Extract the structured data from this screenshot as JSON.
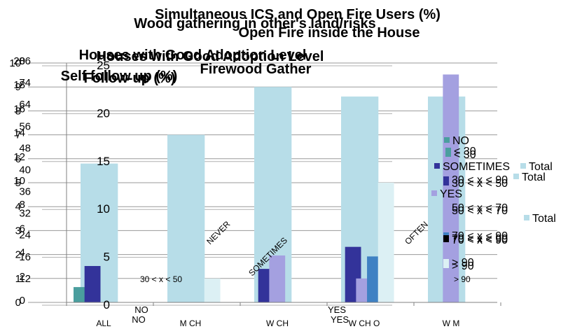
{
  "chart_data": {
    "type": "bar",
    "title_lines": [
      "Simultaneous ICS and Open Fire Users (%)",
      "Wood gathering in other's land/risks",
      "Open Fire inside the House"
    ],
    "subtitle_lines": [
      "Houses with Good Adoption Level",
      "Houses with Good Adoption Level",
      "Firewood Gather",
      "Self follow up (%)",
      "Follow-up (%)"
    ],
    "categories": [
      "ALL",
      "M CH",
      "W CH",
      "W CH O",
      "W M"
    ],
    "extra_xlabels": [
      "NO",
      "NO",
      "YES",
      "YES"
    ],
    "diag_labels": [
      "NEVER",
      "SOMETIMES",
      "OFTEN"
    ],
    "range_labels": [
      "30 < x < 50",
      "> 90"
    ],
    "y_ticks_left": [
      "0",
      "1",
      "2",
      "3",
      "4",
      "5",
      "6",
      "7",
      "8",
      "9",
      "10"
    ],
    "y_ticks_mid": [
      "0",
      "2",
      "4",
      "6",
      "8",
      "10",
      "12",
      "14",
      "16",
      "18",
      "20"
    ],
    "y_ticks_inner": [
      "0",
      "5",
      "10",
      "15",
      "20",
      "25"
    ],
    "y_ticks_overlay": [
      "12",
      "16",
      "24",
      "32",
      "36",
      "40",
      "48",
      "56",
      "64",
      "74",
      "86"
    ],
    "ylim": [
      0,
      25
    ],
    "series": [
      {
        "name": "Total",
        "color": "#b7dde8",
        "values": [
          14.5,
          17.5,
          22.5,
          21.5,
          21.5
        ]
      },
      {
        "name": "NO",
        "color": "#4a9e9e",
        "values": [
          1.6,
          0,
          0,
          0,
          0
        ]
      },
      {
        "name": "SOMETIMES",
        "color": "#33339a",
        "values": [
          3.8,
          0,
          3.5,
          5.8,
          0
        ]
      },
      {
        "name": "YES",
        "color": "#a4a0e0",
        "values": [
          0,
          0,
          4.9,
          2.5,
          23.8
        ]
      },
      {
        "name": "70 < x < 90",
        "color": "#3f81c3",
        "values": [
          0,
          0,
          0,
          4.8,
          0
        ]
      },
      {
        "name": "> 90",
        "color": "#dcf0f4",
        "values": [
          0,
          2.5,
          0,
          12.5,
          0
        ]
      }
    ],
    "legend": {
      "placement": "right",
      "items": [
        {
          "label": "NO",
          "color": "#4a9e9e"
        },
        {
          "label": "< 30",
          "color": "#4a9e9e"
        },
        {
          "label": "< 30",
          "color": "#4a9e9e"
        },
        {
          "label": "SOMETIMES",
          "color": "#33339a"
        },
        {
          "label": "30 < x < 90",
          "color": "#33339a"
        },
        {
          "label": "30 < x < 50",
          "color": "#33339a"
        },
        {
          "label": "YES",
          "color": "#a4a0e0"
        },
        {
          "label": "50 < x < 70",
          "color": "#a4a0e0"
        },
        {
          "label": "50 < x < 70",
          "color": "#a4a0e0"
        },
        {
          "label": "70 < x < 90",
          "color": "#3f81c3"
        },
        {
          "label": "70 < x < 90",
          "color": "#000000"
        },
        {
          "label": "70 < x < 90",
          "color": "#000000"
        },
        {
          "label": "> 90",
          "color": "#dcf0f4"
        },
        {
          "label": "> 90",
          "color": "#dcf0f4"
        },
        {
          "label": "Total",
          "color": "#b7dde8"
        },
        {
          "label": "Total",
          "color": "#b7dde8"
        },
        {
          "label": "Total",
          "color": "#b7dde8"
        }
      ]
    },
    "grid": true
  }
}
